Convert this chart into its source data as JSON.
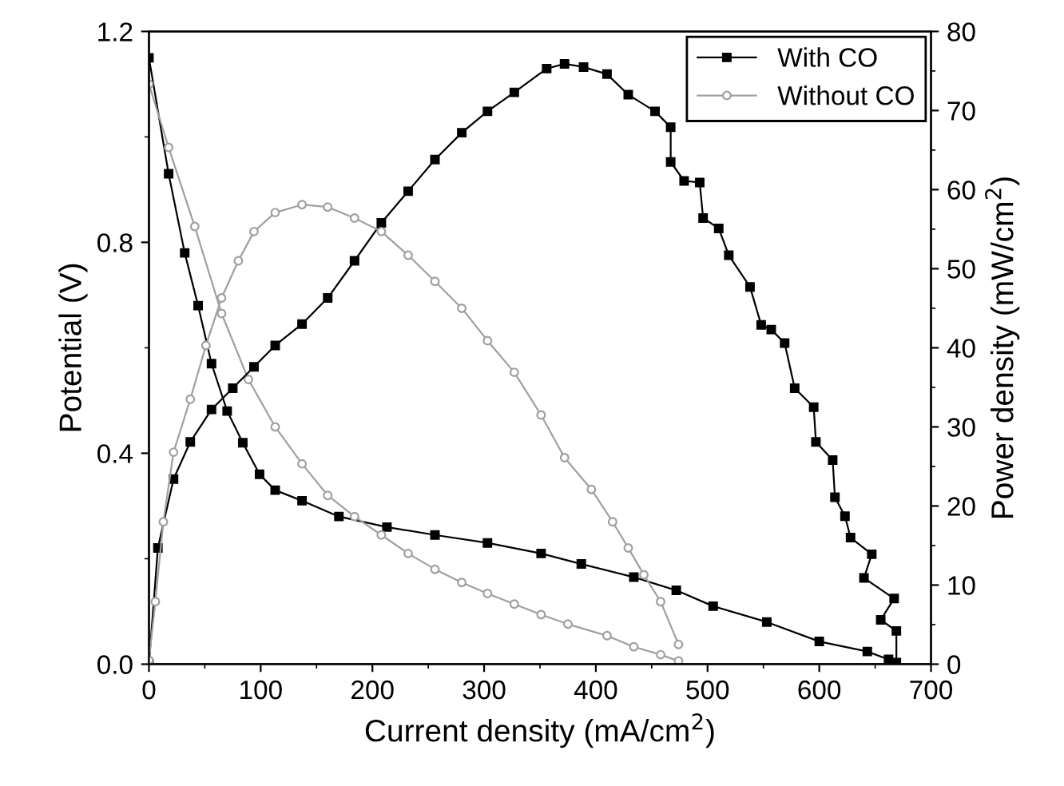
{
  "chart_data": {
    "type": "line",
    "xlabel": "Current density (mA/cm$^{2}$)",
    "ylabel": "Potential (V)",
    "y2label": "Power density (mW/cm$^{2}$)",
    "xlim": [
      0,
      700
    ],
    "xticks": [
      0,
      100,
      200,
      300,
      400,
      500,
      600,
      700
    ],
    "ylim": [
      0,
      1.2
    ],
    "yticks": [
      {
        "value": 0,
        "label": "0.0"
      },
      0.4,
      0.8,
      1.2
    ],
    "y2lim": [
      0,
      80
    ],
    "y2ticks": [
      0,
      10,
      20,
      30,
      40,
      50,
      60,
      70,
      80
    ],
    "legend": "top right",
    "grid": false,
    "line_style": "solid",
    "series": [
      {
        "name": "With CO",
        "color": "#000000",
        "marker": "square",
        "x": [
          0,
          17.6,
          32,
          44,
          56,
          70,
          84,
          99,
          113,
          137,
          170,
          213,
          256,
          303,
          351,
          387,
          434,
          472,
          505,
          553,
          600,
          643,
          662
        ],
        "values": [
          1.15,
          0.93,
          0.78,
          0.68,
          0.57,
          0.48,
          0.42,
          0.36,
          0.33,
          0.31,
          0.28,
          0.26,
          0.245,
          0.23,
          0.21,
          0.19,
          0.165,
          0.14,
          0.11,
          0.08,
          0.043,
          0.024,
          0.009
        ]
      },
      {
        "color": "#000000",
        "marker": "square",
        "axis": "y2",
        "x": [
          0,
          8,
          22,
          37,
          56,
          75,
          94,
          113,
          137,
          160,
          184,
          208,
          232,
          256,
          280,
          303,
          327,
          356,
          372,
          389,
          410,
          429,
          453,
          467,
          467,
          479,
          493,
          496,
          510,
          519,
          538,
          548,
          557,
          569,
          578,
          595,
          597,
          612,
          614,
          623,
          628,
          647,
          640,
          667,
          655,
          669,
          669
        ],
        "values": [
          0,
          14.7,
          23.4,
          28.1,
          32.2,
          34.9,
          37.6,
          40.3,
          43,
          46.3,
          51,
          55.8,
          59.8,
          63.8,
          67.2,
          69.9,
          72.3,
          75.3,
          75.9,
          75.5,
          74.6,
          72,
          69.9,
          67.9,
          63.5,
          61.1,
          60.9,
          56.4,
          55.1,
          51.7,
          47.7,
          42.9,
          42.3,
          40.6,
          34.9,
          32.5,
          28.1,
          25.8,
          21.1,
          18.7,
          16,
          13.9,
          10.9,
          8.3,
          5.6,
          4.2,
          0.2
        ]
      },
      {
        "name": "Without CO",
        "color": "#a0a0a0",
        "marker": "circle",
        "x": [
          0,
          17.6,
          41,
          65,
          89,
          113,
          137,
          160,
          184,
          208,
          232,
          256,
          280,
          303,
          327,
          351,
          375,
          410,
          434,
          458,
          474
        ],
        "values": [
          1.1,
          0.98,
          0.83,
          0.665,
          0.54,
          0.45,
          0.38,
          0.32,
          0.28,
          0.245,
          0.21,
          0.18,
          0.155,
          0.134,
          0.114,
          0.094,
          0.076,
          0.054,
          0.033,
          0.018,
          0.006
        ]
      },
      {
        "color": "#a0a0a0",
        "marker": "circle",
        "axis": "y2",
        "x": [
          0,
          5.7,
          12.9,
          22,
          37,
          51,
          65,
          80,
          94,
          113,
          137,
          160,
          184,
          208,
          232,
          256,
          280,
          303,
          327,
          351,
          372,
          396,
          415,
          429,
          443,
          458,
          474
        ],
        "values": [
          0.5,
          7.9,
          18,
          26.8,
          33.5,
          40.3,
          46.3,
          51,
          54.7,
          57.1,
          58.1,
          57.8,
          56.4,
          54.7,
          51.7,
          48.4,
          45,
          40.9,
          36.9,
          31.5,
          26.1,
          22.1,
          18,
          14.7,
          11.3,
          7.9,
          2.5
        ]
      }
    ]
  }
}
